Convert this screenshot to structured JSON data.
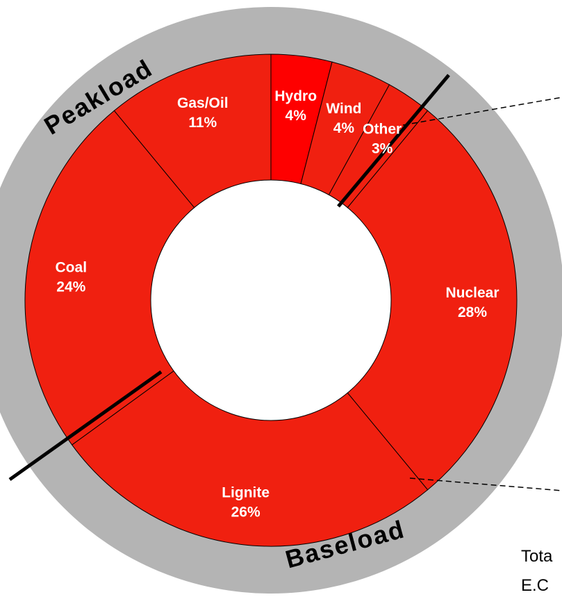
{
  "chart_data": {
    "type": "donut",
    "categories": [
      "Hydro",
      "Wind",
      "Other",
      "Nuclear",
      "Lignite",
      "Coal",
      "Gas/Oil"
    ],
    "values": [
      4,
      4,
      3,
      28,
      26,
      24,
      11
    ],
    "value_labels": [
      "4%",
      "4%",
      "3%",
      "28%",
      "26%",
      "24%",
      "11%"
    ],
    "colors": [
      "#fe0000",
      "#f02010",
      "#f02010",
      "#f02010",
      "#f02010",
      "#f02010",
      "#f02010"
    ],
    "annotations": [
      "Peakload",
      "Baseload",
      "Tota",
      "E.C"
    ]
  }
}
